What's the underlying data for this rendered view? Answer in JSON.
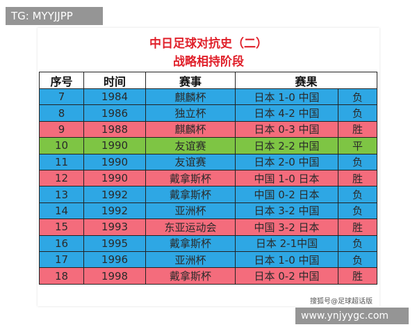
{
  "watermark_top": "TG: MYYJJPP",
  "title": "中日足球对抗史（二）",
  "subtitle": "战略相持阶段",
  "table": {
    "headers": [
      "序号",
      "时间",
      "赛事",
      "赛果"
    ],
    "row_colors": {
      "blue": "#2ea7e4",
      "pink": "#f46c7c",
      "green": "#7ec544"
    },
    "rows": [
      {
        "color": "blue",
        "cells": [
          "7",
          "1984",
          "麒麟杯",
          "日本 1-0 中国",
          "负"
        ]
      },
      {
        "color": "blue",
        "cells": [
          "8",
          "1986",
          "独立杯",
          "日本 4-2 中国",
          "负"
        ]
      },
      {
        "color": "pink",
        "cells": [
          "9",
          "1988",
          "麒麟杯",
          "日本 0-3 中国",
          "胜"
        ]
      },
      {
        "color": "green",
        "cells": [
          "10",
          "1990",
          "友谊赛",
          "日本 2-2 中国",
          "平"
        ]
      },
      {
        "color": "blue",
        "cells": [
          "11",
          "1990",
          "友谊赛",
          "日本 2-0 中国",
          "负"
        ]
      },
      {
        "color": "pink",
        "cells": [
          "12",
          "1990",
          "戴拿斯杯",
          "中国 1-0 日本",
          "胜"
        ]
      },
      {
        "color": "blue",
        "cells": [
          "13",
          "1992",
          "戴拿斯杯",
          "中国 0-2 日本",
          "负"
        ]
      },
      {
        "color": "blue",
        "cells": [
          "14",
          "1992",
          "亚洲杯",
          "日本 3-2 中国",
          "负"
        ]
      },
      {
        "color": "pink",
        "cells": [
          "15",
          "1993",
          "东亚运动会",
          "中国 3-2 日本",
          "胜"
        ]
      },
      {
        "color": "blue",
        "cells": [
          "16",
          "1995",
          "戴拿斯杯",
          "日本 2-1中国",
          "负"
        ]
      },
      {
        "color": "blue",
        "cells": [
          "17",
          "1996",
          "亚洲杯",
          "日本 1-0 中国",
          "负"
        ]
      },
      {
        "color": "pink",
        "cells": [
          "18",
          "1998",
          "戴拿斯杯",
          "日本 0-2 中国",
          "胜"
        ]
      }
    ]
  },
  "source": "搜狐号@足球超话版",
  "watermark_bottom": "www.ynjyygc.com"
}
